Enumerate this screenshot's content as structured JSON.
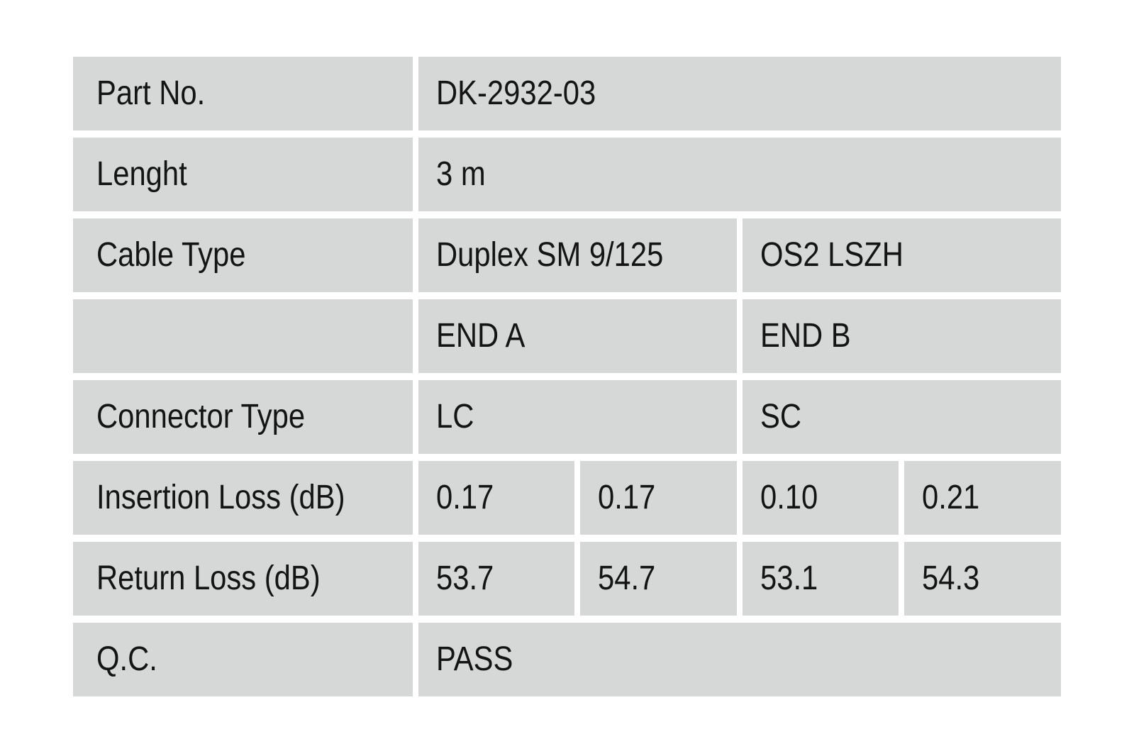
{
  "page": {
    "background_color": "#ffffff"
  },
  "table": {
    "cell_background_color": "#d6d8d8",
    "text_color": "#141414",
    "rows": [
      {
        "label": "Part No.",
        "layout": "full",
        "values": [
          "DK-2932-03"
        ]
      },
      {
        "label": "Lenght",
        "layout": "full",
        "values": [
          "3 m"
        ]
      },
      {
        "label": "Cable Type",
        "layout": "half",
        "values": [
          "Duplex SM 9/125",
          "OS2 LSZH"
        ]
      },
      {
        "label": "",
        "layout": "half",
        "values": [
          "END A",
          "END B"
        ]
      },
      {
        "label": "Connector Type",
        "layout": "half",
        "values": [
          "LC",
          "SC"
        ]
      },
      {
        "label": "Insertion Loss (dB)",
        "layout": "quarter",
        "values": [
          "0.17",
          "0.17",
          "0.10",
          "0.21"
        ]
      },
      {
        "label": "Return Loss (dB)",
        "layout": "quarter",
        "values": [
          "53.7",
          "54.7",
          "53.1",
          "54.3"
        ]
      },
      {
        "label": "Q.C.",
        "layout": "full",
        "values": [
          "PASS"
        ]
      }
    ]
  }
}
